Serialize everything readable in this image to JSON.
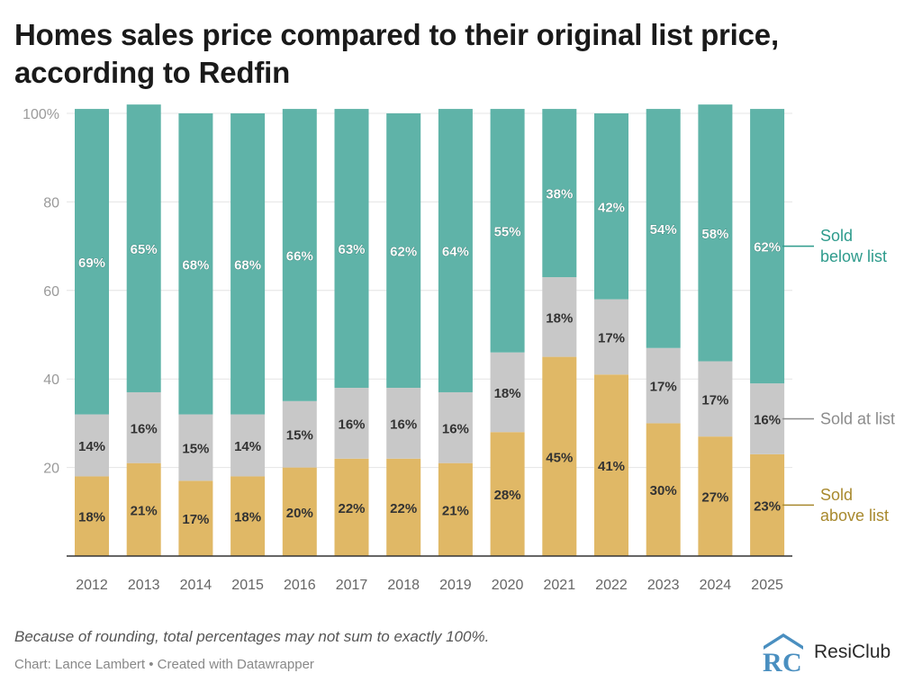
{
  "title_line1": "Homes sales price compared to their original list price,",
  "title_line2": "according to Redfin",
  "footnote": "Because of rounding, total percentages may not sum to exactly 100%.",
  "credit": "Chart: Lance Lambert • Created with Datawrapper",
  "logo_text": "ResiClub",
  "colors": {
    "above": "#e0b866",
    "at": "#c8c8c8",
    "below": "#5fb3a8",
    "below_label": "#2e9b8c",
    "at_label": "#8c8c8c",
    "above_label": "#a8892e",
    "axis_text": "#9a9a9a",
    "grid": "#e4e4e4",
    "logo_blue": "#4a8fc0"
  },
  "chart_data": {
    "type": "bar",
    "stacked": true,
    "categories": [
      "2012",
      "2013",
      "2014",
      "2015",
      "2016",
      "2017",
      "2018",
      "2019",
      "2020",
      "2021",
      "2022",
      "2023",
      "2024",
      "2025"
    ],
    "ylim": [
      0,
      100
    ],
    "yticks": [
      20,
      40,
      60,
      80,
      100
    ],
    "ytick_labels": [
      "20",
      "40",
      "60",
      "80",
      "100%"
    ],
    "grid": true,
    "series": [
      {
        "key": "above",
        "name": "Sold above list",
        "label_lines": [
          "Sold",
          "above list"
        ],
        "values": [
          18,
          21,
          17,
          18,
          20,
          22,
          22,
          21,
          28,
          45,
          41,
          30,
          27,
          23
        ]
      },
      {
        "key": "at",
        "name": "Sold at list",
        "label_lines": [
          "Sold at list"
        ],
        "values": [
          14,
          16,
          15,
          14,
          15,
          16,
          16,
          16,
          18,
          18,
          17,
          17,
          17,
          16
        ]
      },
      {
        "key": "below",
        "name": "Sold below list",
        "label_lines": [
          "Sold",
          "below list"
        ],
        "values": [
          69,
          65,
          68,
          68,
          66,
          63,
          62,
          64,
          55,
          38,
          42,
          54,
          58,
          62
        ]
      }
    ]
  }
}
